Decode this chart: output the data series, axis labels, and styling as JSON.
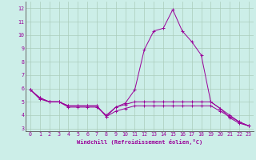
{
  "xlabel": "Windchill (Refroidissement éolien,°C)",
  "background_color": "#cceee8",
  "grid_color": "#aaccbb",
  "line_color": "#990099",
  "x": [
    0,
    1,
    2,
    3,
    4,
    5,
    6,
    7,
    8,
    9,
    10,
    11,
    12,
    13,
    14,
    15,
    16,
    17,
    18,
    19,
    20,
    21,
    22,
    23
  ],
  "line1": [
    5.9,
    5.3,
    5.0,
    5.0,
    4.7,
    4.7,
    4.7,
    4.7,
    3.9,
    4.6,
    4.9,
    5.9,
    8.9,
    10.3,
    10.5,
    11.9,
    10.3,
    9.5,
    8.5,
    5.0,
    4.5,
    3.8,
    3.4,
    3.2
  ],
  "line2": [
    5.9,
    5.2,
    5.0,
    5.0,
    4.6,
    4.6,
    4.6,
    4.6,
    4.0,
    4.6,
    4.8,
    5.0,
    5.0,
    5.0,
    5.0,
    5.0,
    5.0,
    5.0,
    5.0,
    5.0,
    4.5,
    4.0,
    3.5,
    3.2
  ],
  "line3": [
    5.9,
    5.3,
    5.0,
    5.0,
    4.7,
    4.7,
    4.7,
    4.7,
    3.9,
    4.3,
    4.5,
    4.7,
    4.7,
    4.7,
    4.7,
    4.7,
    4.7,
    4.7,
    4.7,
    4.7,
    4.3,
    3.9,
    3.5,
    3.2
  ],
  "ylim": [
    2.8,
    12.5
  ],
  "xlim": [
    -0.5,
    23.5
  ],
  "yticks": [
    3,
    4,
    5,
    6,
    7,
    8,
    9,
    10,
    11,
    12
  ],
  "xticks": [
    0,
    1,
    2,
    3,
    4,
    5,
    6,
    7,
    8,
    9,
    10,
    11,
    12,
    13,
    14,
    15,
    16,
    17,
    18,
    19,
    20,
    21,
    22,
    23
  ],
  "tick_fontsize": 4.8,
  "label_fontsize": 5.0
}
